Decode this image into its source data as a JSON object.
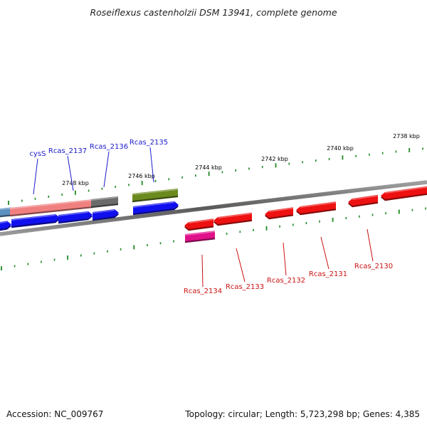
{
  "title": "Roseiflexus castenholzii DSM 13941, complete genome",
  "footer": {
    "accession": "Accession: NC_009767",
    "summary": "Topology: circular; Length: 5,723,298 bp; Genes: 4,385"
  },
  "colors": {
    "backbone": "#707070",
    "tick": "#1f8a1f",
    "forward_gene": "#1010ee",
    "reverse_gene": "#ee1111",
    "forward_label": "#1a1acc",
    "reverse_label": "#cc1111",
    "rrna_gray": "#6b6b6b",
    "olive": "#6b8a1e",
    "magenta": "#e0108a",
    "salmon": "#f08080",
    "steelblue": "#5b8fc0"
  },
  "scale_labels": [
    "2748 kbp",
    "2746 kbp",
    "2744 kbp",
    "2742 kbp",
    "2740 kbp",
    "2738 kbp"
  ],
  "forward_labels": [
    "cysS",
    "Rcas_2137",
    "Rcas_2136",
    "Rcas_2135"
  ],
  "reverse_labels": [
    "Rcas_2134",
    "Rcas_2133",
    "Rcas_2132",
    "Rcas_2131",
    "Rcas_2130"
  ]
}
